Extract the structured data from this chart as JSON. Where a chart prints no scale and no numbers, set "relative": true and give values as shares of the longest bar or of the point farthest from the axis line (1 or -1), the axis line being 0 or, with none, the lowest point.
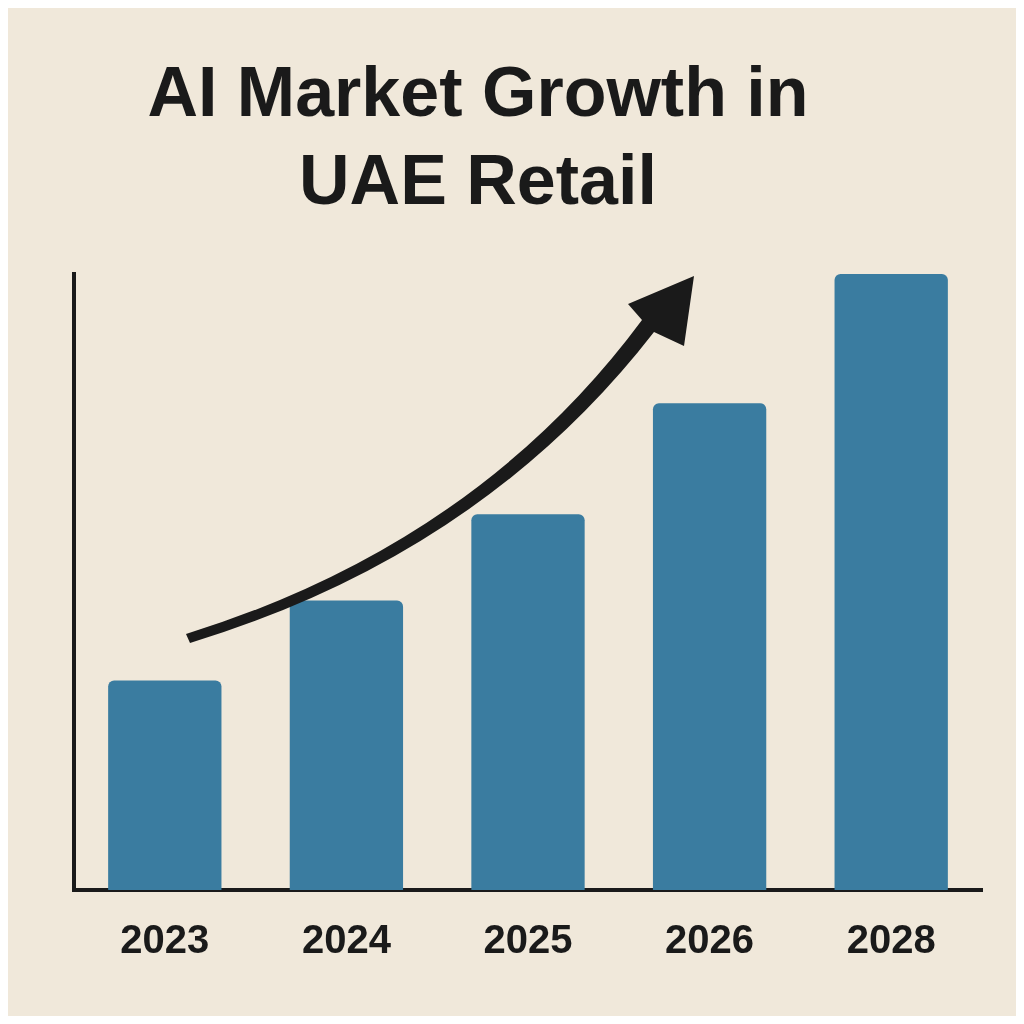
{
  "chart_data": {
    "type": "bar",
    "title": "AI Market Growth in UAE Retail",
    "categories": [
      "2023",
      "2024",
      "2025",
      "2026",
      "2028"
    ],
    "values": [
      0.34,
      0.47,
      0.61,
      0.79,
      1
    ],
    "color": "#3a7ca0",
    "relative": true,
    "grid": false,
    "legend": false
  }
}
